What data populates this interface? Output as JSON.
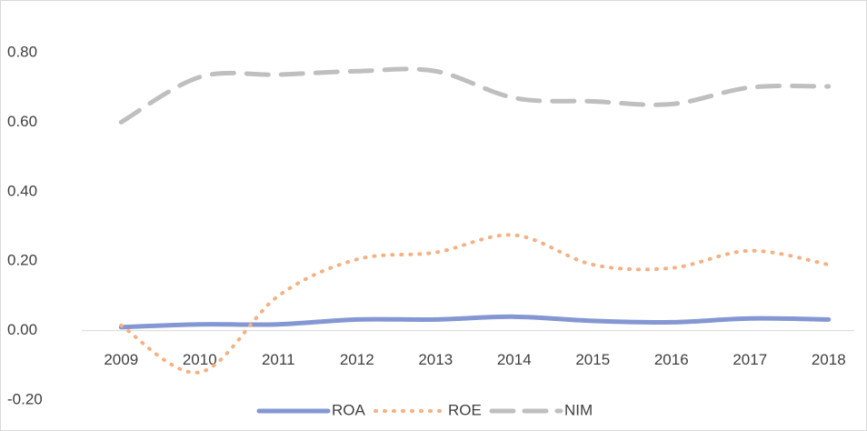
{
  "chart_data": {
    "type": "line",
    "categories": [
      "2009",
      "2010",
      "2011",
      "2012",
      "2013",
      "2014",
      "2015",
      "2016",
      "2017",
      "2018"
    ],
    "series": [
      {
        "name": "ROA",
        "color": "#8497d3",
        "dash": "solid",
        "values": [
          0.01,
          0.018,
          0.018,
          0.032,
          0.032,
          0.04,
          0.028,
          0.024,
          0.035,
          0.032
        ]
      },
      {
        "name": "ROE",
        "color": "#f4b183",
        "dash": "dot",
        "values": [
          0.015,
          -0.12,
          0.1,
          0.205,
          0.225,
          0.275,
          0.19,
          0.18,
          0.23,
          0.19
        ]
      },
      {
        "name": "NIM",
        "color": "#bfbfbf",
        "dash": "dash",
        "values": [
          0.6,
          0.73,
          0.737,
          0.747,
          0.747,
          0.67,
          0.66,
          0.652,
          0.7,
          0.703
        ]
      }
    ],
    "ylim": [
      -0.2,
      0.8
    ],
    "yticks": [
      {
        "value": -0.2,
        "label": "-0.20"
      },
      {
        "value": 0,
        "label": "0.00"
      },
      {
        "value": 0.2,
        "label": "0.20"
      },
      {
        "value": 0.4,
        "label": "0.40"
      },
      {
        "value": 0.6,
        "label": "0.60"
      },
      {
        "value": 0.8,
        "label": "0.80"
      }
    ],
    "grid": false,
    "legend": "bottom"
  }
}
